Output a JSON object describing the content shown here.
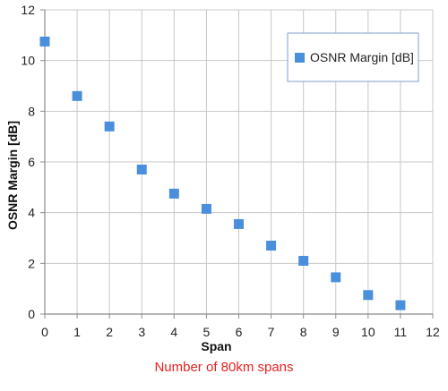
{
  "chart_data": {
    "type": "scatter",
    "xlabel": "Span",
    "ylabel": "OSNR Margin [dB]",
    "xlim": [
      0,
      12
    ],
    "ylim": [
      0,
      12
    ],
    "xticks": [
      "0",
      "1",
      "2",
      "3",
      "4",
      "5",
      "6",
      "7",
      "8",
      "9",
      "10",
      "11",
      "12"
    ],
    "yticks": [
      "0",
      "2",
      "4",
      "6",
      "8",
      "10",
      "12"
    ],
    "grid": true,
    "legend_position": "top-right",
    "series": [
      {
        "name": "OSNR Margin [dB]",
        "color": "#4a8fdc",
        "marker": "square",
        "x": [
          0,
          1,
          2,
          3,
          4,
          5,
          6,
          7,
          8,
          9,
          10,
          11
        ],
        "y": [
          10.75,
          8.6,
          7.4,
          5.7,
          4.75,
          4.15,
          3.55,
          2.7,
          2.1,
          1.45,
          0.75,
          0.35
        ]
      }
    ]
  },
  "caption": {
    "text": "Number of 80km spans",
    "color": "#e8231e"
  },
  "colors": {
    "grid": "#c8c8c8",
    "axis": "#8c8c8c",
    "legend_border": "#7f9fcf"
  }
}
